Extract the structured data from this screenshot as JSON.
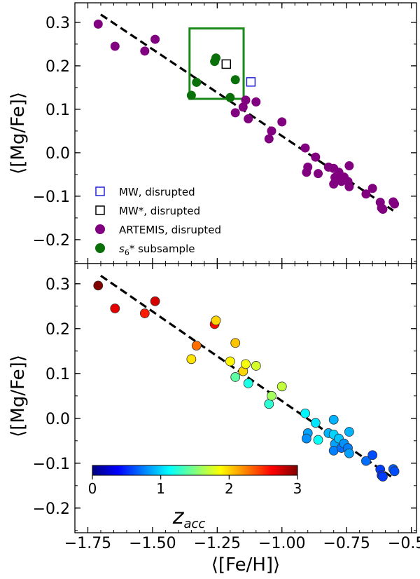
{
  "chart_data": [
    {
      "type": "scatter",
      "panel": "top",
      "xlabel": "⟨[Fe/H]⟩",
      "ylabel": "⟨[Mg/Fe]⟩",
      "xlim": [
        -1.8,
        -0.48
      ],
      "ylim": [
        -0.255,
        0.345
      ],
      "xticks": [
        -1.75,
        -1.5,
        -1.25,
        -1.0,
        -0.75,
        -0.5
      ],
      "yticks": [
        -0.2,
        -0.1,
        0.0,
        0.1,
        0.2,
        0.3
      ],
      "ytick_labels": [
        "−0.2",
        "−0.1",
        "0.0",
        "0.1",
        "0.2",
        "0.3"
      ],
      "fit_line": {
        "x": [
          -1.7,
          -0.57
        ],
        "y": [
          0.318,
          -0.133
        ],
        "style": "dashed",
        "color": "#000000"
      },
      "highlight_box": {
        "x": [
          -1.357,
          -1.148
        ],
        "y": [
          0.124,
          0.286
        ],
        "color": "#1b8a1b"
      },
      "legend_location": "lower-left",
      "series": [
        {
          "name": "MW, disrupted",
          "marker": "open-square",
          "color": "#2222dd",
          "points": [
            [
              -1.12,
              0.163
            ]
          ]
        },
        {
          "name": "MW*, disrupted",
          "marker": "open-square",
          "color": "#000000",
          "points": [
            [
              -1.215,
              0.204
            ]
          ]
        },
        {
          "name": "ARTEMIS, disrupted",
          "marker": "circle",
          "color": "#800080",
          "points": [
            [
              -1.71,
              0.296
            ],
            [
              -1.645,
              0.245
            ],
            [
              -1.53,
              0.234
            ],
            [
              -1.49,
              0.261
            ],
            [
              -1.18,
              0.092
            ],
            [
              -1.15,
              0.105
            ],
            [
              -1.14,
              0.121
            ],
            [
              -1.13,
              0.078
            ],
            [
              -1.1,
              0.117
            ],
            [
              -1.05,
              0.032
            ],
            [
              -1.04,
              0.05
            ],
            [
              -1.0,
              0.071
            ],
            [
              -0.91,
              0.011
            ],
            [
              -0.9,
              -0.033
            ],
            [
              -0.905,
              -0.045
            ],
            [
              -0.87,
              -0.01
            ],
            [
              -0.86,
              -0.048
            ],
            [
              -0.82,
              -0.033
            ],
            [
              -0.8,
              -0.036
            ],
            [
              -0.795,
              -0.057
            ],
            [
              -0.8,
              -0.072
            ],
            [
              -0.78,
              -0.045
            ],
            [
              -0.77,
              -0.066
            ],
            [
              -0.76,
              -0.056
            ],
            [
              -0.745,
              -0.066
            ],
            [
              -0.74,
              -0.078
            ],
            [
              -0.74,
              -0.03
            ],
            [
              -0.675,
              -0.095
            ],
            [
              -0.65,
              -0.082
            ],
            [
              -0.62,
              -0.114
            ],
            [
              -0.615,
              -0.127
            ],
            [
              -0.61,
              -0.13
            ],
            [
              -0.57,
              -0.113
            ],
            [
              -0.565,
              -0.118
            ]
          ]
        },
        {
          "name": "s₆* subsample",
          "name_parts": {
            "main": "s",
            "sub": "6",
            "suffix": "* subsample"
          },
          "marker": "circle",
          "color": "#0a700a",
          "points": [
            [
              -1.35,
              0.132
            ],
            [
              -1.33,
              0.162
            ],
            [
              -1.26,
              0.21
            ],
            [
              -1.255,
              0.218
            ],
            [
              -1.2,
              0.127
            ],
            [
              -1.18,
              0.168
            ]
          ]
        }
      ]
    },
    {
      "type": "scatter",
      "panel": "bottom",
      "xlabel": "⟨[Fe/H]⟩",
      "ylabel": "⟨[Mg/Fe]⟩",
      "xlim": [
        -1.8,
        -0.48
      ],
      "ylim": [
        -0.255,
        0.345
      ],
      "xticks": [
        -1.75,
        -1.5,
        -1.25,
        -1.0,
        -0.75,
        -0.5
      ],
      "xtick_labels": [
        "−1.75",
        "−1.50",
        "−1.25",
        "−1.00",
        "−0.75",
        "−0.50"
      ],
      "yticks": [
        -0.2,
        -0.1,
        0.0,
        0.1,
        0.2,
        0.3
      ],
      "ytick_labels": [
        "−0.2",
        "−0.1",
        "0.0",
        "0.1",
        "0.2",
        "0.3"
      ],
      "fit_line": {
        "x": [
          -1.7,
          -0.57
        ],
        "y": [
          0.318,
          -0.133
        ],
        "style": "dashed",
        "color": "#000000"
      },
      "colorbar": {
        "label": "z_acc",
        "label_parts": {
          "main": "z",
          "sub": "acc"
        },
        "range": [
          0,
          3
        ],
        "ticks": [
          0,
          1,
          2,
          3
        ],
        "tick_labels": [
          "0",
          "1",
          "2",
          "3"
        ],
        "colormap": "jet",
        "location": "lower-left",
        "orientation": "horizontal"
      },
      "points": [
        {
          "x": -1.71,
          "y": 0.296,
          "z": 3.0
        },
        {
          "x": -1.645,
          "y": 0.245,
          "z": 2.7
        },
        {
          "x": -1.53,
          "y": 0.234,
          "z": 2.55
        },
        {
          "x": -1.49,
          "y": 0.261,
          "z": 2.75
        },
        {
          "x": -1.35,
          "y": 0.132,
          "z": 1.95
        },
        {
          "x": -1.33,
          "y": 0.162,
          "z": 2.3
        },
        {
          "x": -1.26,
          "y": 0.21,
          "z": 2.6
        },
        {
          "x": -1.255,
          "y": 0.218,
          "z": 2.0
        },
        {
          "x": -1.2,
          "y": 0.127,
          "z": 1.9
        },
        {
          "x": -1.18,
          "y": 0.168,
          "z": 2.05
        },
        {
          "x": -1.18,
          "y": 0.092,
          "z": 1.4
        },
        {
          "x": -1.15,
          "y": 0.105,
          "z": 2.0
        },
        {
          "x": -1.14,
          "y": 0.121,
          "z": 1.85
        },
        {
          "x": -1.13,
          "y": 0.078,
          "z": 1.2
        },
        {
          "x": -1.1,
          "y": 0.117,
          "z": 1.75
        },
        {
          "x": -1.05,
          "y": 0.032,
          "z": 1.25
        },
        {
          "x": -1.04,
          "y": 0.05,
          "z": 1.6
        },
        {
          "x": -1.0,
          "y": 0.071,
          "z": 1.7
        },
        {
          "x": -0.91,
          "y": 0.011,
          "z": 1.1
        },
        {
          "x": -0.9,
          "y": -0.033,
          "z": 0.85
        },
        {
          "x": -0.905,
          "y": -0.045,
          "z": 0.8
        },
        {
          "x": -0.87,
          "y": -0.01,
          "z": 1.05
        },
        {
          "x": -0.86,
          "y": -0.048,
          "z": 1.15
        },
        {
          "x": -0.82,
          "y": -0.033,
          "z": 0.9
        },
        {
          "x": -0.8,
          "y": -0.036,
          "z": 1.0
        },
        {
          "x": -0.795,
          "y": -0.057,
          "z": 0.85
        },
        {
          "x": -0.8,
          "y": -0.072,
          "z": 0.75
        },
        {
          "x": -0.78,
          "y": -0.045,
          "z": 0.95
        },
        {
          "x": -0.77,
          "y": -0.066,
          "z": 0.7
        },
        {
          "x": -0.76,
          "y": -0.056,
          "z": 0.8
        },
        {
          "x": -0.745,
          "y": -0.066,
          "z": 0.75
        },
        {
          "x": -0.74,
          "y": -0.078,
          "z": 0.85
        },
        {
          "x": -0.74,
          "y": -0.03,
          "z": 0.9
        },
        {
          "x": -0.675,
          "y": -0.095,
          "z": 0.7
        },
        {
          "x": -0.65,
          "y": -0.082,
          "z": 0.6
        },
        {
          "x": -0.62,
          "y": -0.114,
          "z": 0.55
        },
        {
          "x": -0.615,
          "y": -0.127,
          "z": 0.5
        },
        {
          "x": -0.61,
          "y": -0.13,
          "z": 0.55
        },
        {
          "x": -0.57,
          "y": -0.113,
          "z": 0.65
        },
        {
          "x": -0.565,
          "y": -0.118,
          "z": 0.6
        },
        {
          "x": -0.8,
          "y": -0.003,
          "z": 0.9
        }
      ]
    }
  ]
}
